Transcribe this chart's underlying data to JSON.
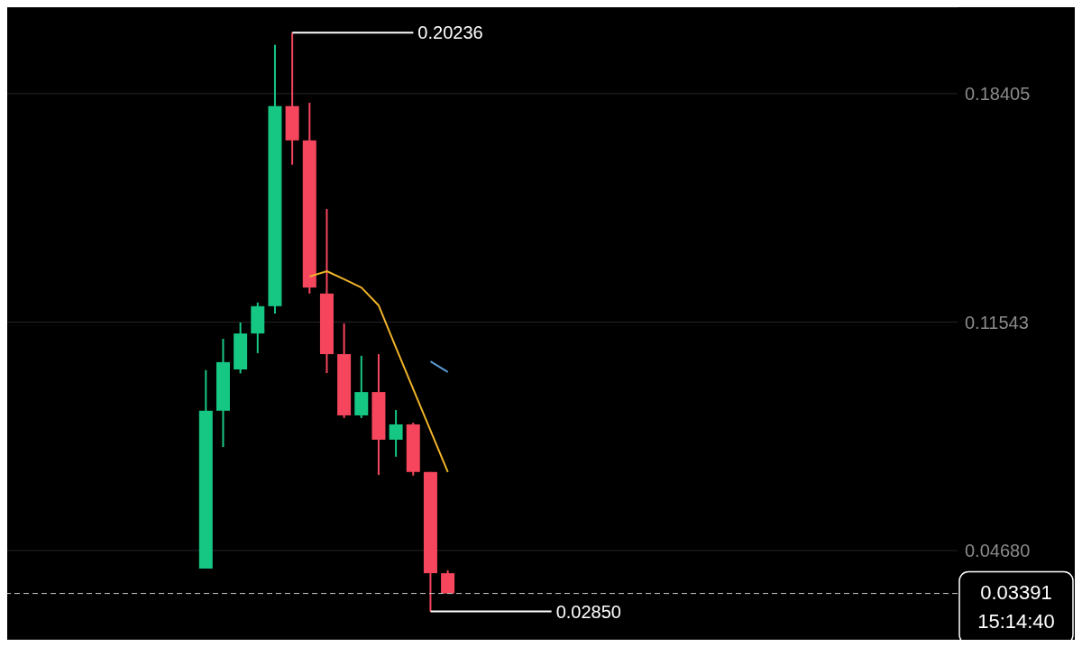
{
  "chart_data": {
    "type": "candlestick",
    "categories": [
      null,
      null,
      null,
      null,
      null,
      null,
      null,
      null,
      null,
      null,
      null,
      null,
      null,
      null,
      null,
      null,
      null,
      null,
      null,
      null,
      null,
      null,
      null,
      null,
      null,
      null,
      null,
      null,
      null,
      null,
      null,
      null,
      null,
      null,
      null,
      null,
      null,
      null,
      null,
      null,
      null,
      null,
      null,
      null,
      null,
      null,
      null,
      null,
      null,
      null,
      null,
      null,
      null,
      null,
      null
    ],
    "ohlc": [
      null,
      null,
      null,
      null,
      null,
      null,
      null,
      null,
      null,
      null,
      null,
      [
        0.0414,
        0.101,
        0.0414,
        0.0888
      ],
      [
        0.0888,
        0.1104,
        0.0779,
        0.1034
      ],
      [
        0.1012,
        0.1153,
        0.1,
        0.112
      ],
      [
        0.112,
        0.1213,
        0.1061,
        0.1202
      ],
      [
        0.1202,
        0.1987,
        0.118,
        0.1803
      ],
      [
        0.1803,
        0.20236,
        0.1627,
        0.17
      ],
      [
        0.17,
        0.1813,
        0.124,
        0.1258
      ],
      [
        0.124,
        0.1494,
        0.1001,
        0.1058
      ],
      [
        0.1058,
        0.115,
        0.0866,
        0.0874
      ],
      [
        0.0874,
        0.1053,
        0.0866,
        0.0944
      ],
      [
        0.0944,
        0.1058,
        0.0695,
        0.0801
      ],
      [
        0.0801,
        0.089,
        0.075,
        0.0847
      ],
      [
        0.0847,
        0.0852,
        0.0693,
        0.0704
      ],
      [
        0.0704,
        0.0704,
        0.0285,
        0.04
      ],
      [
        0.04,
        0.0409,
        0.03391,
        0.03391
      ],
      null,
      null,
      null,
      null,
      null,
      null,
      null,
      null,
      null,
      null,
      null,
      null,
      null,
      null,
      null,
      null,
      null,
      null,
      null,
      null,
      null,
      null,
      null,
      null,
      null,
      null,
      null,
      null,
      null
    ],
    "colors": [
      null,
      null,
      null,
      null,
      null,
      null,
      null,
      null,
      null,
      null,
      null,
      "#16c784",
      "#16c784",
      "#16c784",
      "#16c784",
      "#16c784",
      "#f6465d",
      "#f6465d",
      "#f6465d",
      "#f6465d",
      "#16c784",
      "#f6465d",
      "#16c784",
      "#f6465d",
      "#f6465d",
      "#f6465d",
      null,
      null,
      null,
      null,
      null,
      null,
      null,
      null,
      null,
      null,
      null,
      null,
      null,
      null,
      null,
      null,
      null,
      null,
      null,
      null,
      null,
      null,
      null,
      null,
      null,
      null,
      null,
      null,
      null
    ],
    "series": [
      {
        "type": "line",
        "color": "#f0b429",
        "values": [
          null,
          null,
          null,
          null,
          null,
          null,
          null,
          null,
          null,
          null,
          null,
          null,
          null,
          null,
          null,
          null,
          null,
          0.1291,
          0.1307,
          0.1283,
          0.1258,
          0.1204,
          0.1077,
          0.0953,
          0.0828,
          0.0704,
          null,
          null,
          null,
          null,
          null,
          null,
          null,
          null,
          null,
          null,
          null,
          null,
          null,
          null,
          null,
          null,
          null,
          null,
          null,
          null,
          null,
          null,
          null,
          null,
          null,
          null,
          null,
          null,
          null
        ]
      },
      {
        "type": "line",
        "color": "#5b9bd5",
        "values": [
          null,
          null,
          null,
          null,
          null,
          null,
          null,
          null,
          null,
          null,
          null,
          null,
          null,
          null,
          null,
          null,
          null,
          null,
          null,
          null,
          null,
          null,
          null,
          null,
          0.1036,
          0.1004,
          null,
          null,
          null,
          null,
          null,
          null,
          null,
          null,
          null,
          null,
          null,
          null,
          null,
          null,
          null,
          null,
          null,
          null,
          null,
          null,
          null,
          null,
          null,
          null,
          null,
          null,
          null,
          null,
          null
        ]
      }
    ],
    "ylim": [
      0.02,
      0.21
    ],
    "yticks": [
      0.18405,
      0.11543,
      {
        "value": 0.0468,
        "label": "0.04680"
      }
    ],
    "grid": "y",
    "tick_labels": "y",
    "ref_lines": [
      {
        "axis": "y",
        "value": 0.03391,
        "label": "0.03391",
        "color": "#cccccc",
        "line_style": "dashed"
      }
    ],
    "annotations": [
      "0.20236",
      "0.02850",
      "15:14:40"
    ]
  }
}
